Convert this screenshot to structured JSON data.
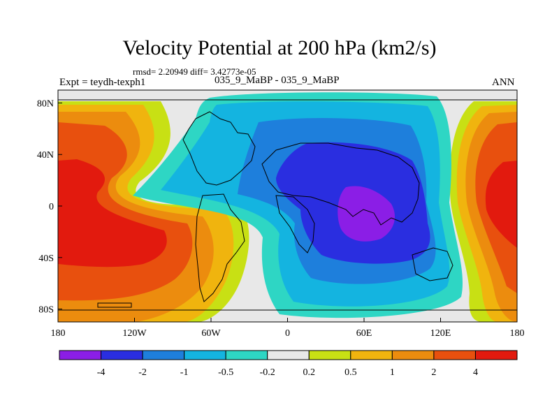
{
  "title": "Velocity Potential at 200 hPa (km2/s)",
  "stats": "rmsd= 2.20949  diff= 3.42773e-05",
  "experiment": "Expt = teydh-texph1",
  "case": "035_9_MaBP - 035_9_MaBP",
  "season": "ANN",
  "map": {
    "x_range": [
      -180,
      180
    ],
    "y_range": [
      -90,
      90
    ],
    "x_ticks": [
      {
        "value": -180,
        "label": "180"
      },
      {
        "value": -120,
        "label": "120W"
      },
      {
        "value": -60,
        "label": "60W"
      },
      {
        "value": 0,
        "label": "0"
      },
      {
        "value": 60,
        "label": "60E"
      },
      {
        "value": 120,
        "label": "120E"
      },
      {
        "value": 180,
        "label": "180"
      }
    ],
    "y_ticks": [
      {
        "value": 80,
        "label": "80N"
      },
      {
        "value": 40,
        "label": "40N"
      },
      {
        "value": 0,
        "label": "0"
      },
      {
        "value": -40,
        "label": "40S"
      },
      {
        "value": -80,
        "label": "80S"
      }
    ]
  },
  "colorbar": {
    "colors": [
      "#8b1ee6",
      "#2a2ee0",
      "#1e7fdc",
      "#14b4e0",
      "#2ed6c4",
      "#e8e8e8",
      "#c8e014",
      "#f0b40e",
      "#ec8c0e",
      "#e8500e",
      "#e21a0e"
    ],
    "labels": [
      "-4",
      "-2",
      "-1",
      "-0.5",
      "-0.2",
      "0.2",
      "0.5",
      "1",
      "2",
      "4"
    ]
  }
}
